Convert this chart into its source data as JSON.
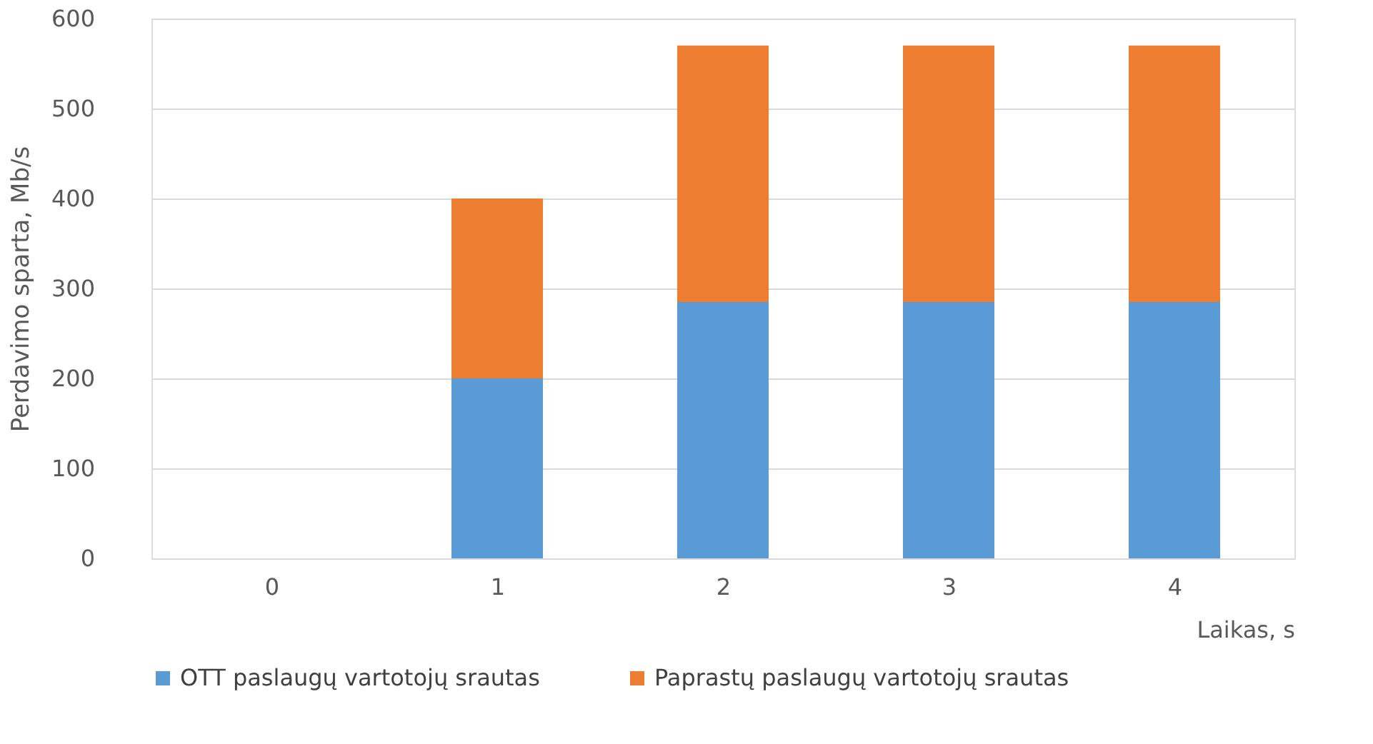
{
  "chart_data": {
    "type": "bar",
    "stacked": true,
    "xlabel": "Laikas, s",
    "ylabel": "Perdavimo sparta, Mb/s",
    "categories": [
      "0",
      "1",
      "2",
      "3",
      "4"
    ],
    "series": [
      {
        "name": "OTT paslaugų vartotojų srautas",
        "color": "#5b9bd5",
        "values": [
          0,
          200,
          285,
          285,
          285
        ]
      },
      {
        "name": "Paprastų paslaugų vartotojų srautas",
        "color": "#ed7d31",
        "values": [
          0,
          200,
          285,
          285,
          285
        ]
      }
    ],
    "ylim": [
      0,
      600
    ],
    "yticks": [
      0,
      100,
      200,
      300,
      400,
      500,
      600
    ],
    "grid": "y",
    "legend": "bottom"
  }
}
